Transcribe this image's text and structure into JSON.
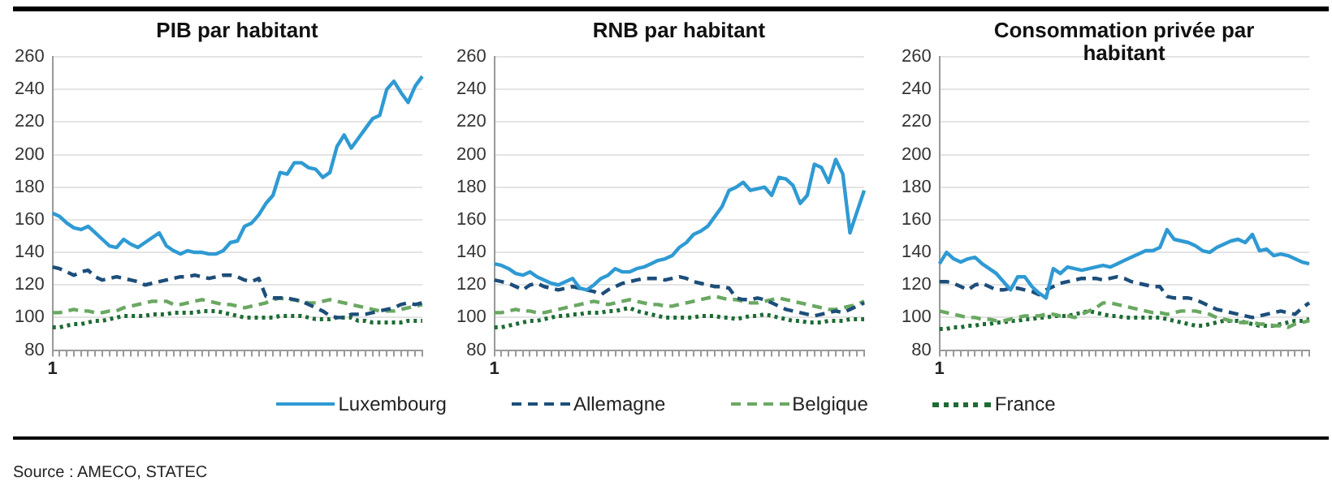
{
  "chart_data": [
    {
      "type": "line",
      "title": "PIB par habitant",
      "categories": [
        "1",
        null,
        null,
        null,
        null,
        null,
        null,
        null,
        null,
        null,
        null,
        null,
        null,
        null,
        null,
        null,
        null,
        null,
        null,
        null,
        null,
        null,
        null,
        null,
        null,
        null,
        null,
        null,
        null,
        null,
        null,
        null,
        null,
        null,
        null,
        null,
        null,
        null,
        null,
        null,
        null,
        null,
        null,
        null,
        null,
        null,
        null,
        null,
        null,
        null,
        null,
        null,
        null
      ],
      "ylim": [
        80,
        260
      ],
      "yticks": [
        80,
        100,
        120,
        140,
        160,
        180,
        200,
        220,
        240,
        260
      ],
      "grid": "y",
      "legend": "bottom",
      "marker": "none",
      "annotations": [
        "Source : AMECO, STATEC"
      ],
      "series": [
        {
          "name": "Luxembourg",
          "color": "#2f9ad3",
          "line_style": "solid",
          "values": [
            164,
            162,
            158,
            155,
            154,
            156,
            152,
            148,
            144,
            143,
            148,
            145,
            143,
            146,
            149,
            152,
            144,
            141,
            139,
            141,
            140,
            140,
            139,
            139,
            141,
            146,
            147,
            156,
            158,
            163,
            170,
            175,
            189,
            188,
            195,
            195,
            192,
            191,
            186,
            189,
            205,
            212,
            204,
            210,
            216,
            222,
            224,
            240,
            245,
            238,
            232,
            242,
            248
          ]
        },
        {
          "name": "Allemagne",
          "color": "#1d4e7a",
          "line_style": "dashed",
          "values": [
            131,
            130,
            128,
            126,
            128,
            129,
            125,
            123,
            124,
            125,
            124,
            123,
            122,
            120,
            121,
            122,
            123,
            124,
            125,
            125,
            126,
            125,
            124,
            125,
            126,
            126,
            125,
            123,
            122,
            124,
            113,
            112,
            112,
            112,
            111,
            110,
            108,
            106,
            104,
            101,
            100,
            100,
            102,
            102,
            102,
            103,
            104,
            105,
            106,
            108,
            109,
            108,
            109
          ]
        },
        {
          "name": "Belgique",
          "color": "#6aa862",
          "line_style": "dashed",
          "values": [
            103,
            103,
            104,
            105,
            104,
            104,
            103,
            103,
            104,
            104,
            106,
            107,
            108,
            109,
            110,
            110,
            110,
            108,
            108,
            109,
            110,
            111,
            110,
            109,
            108,
            108,
            107,
            106,
            107,
            108,
            109,
            111,
            112,
            111,
            111,
            110,
            109,
            109,
            110,
            111,
            110,
            109,
            108,
            107,
            106,
            105,
            104,
            104,
            104,
            105,
            106,
            107,
            108
          ]
        },
        {
          "name": "France",
          "color": "#1e6b34",
          "line_style": "dotted",
          "values": [
            94,
            94,
            95,
            96,
            96,
            97,
            98,
            98,
            99,
            100,
            101,
            101,
            101,
            101,
            102,
            102,
            102,
            103,
            103,
            103,
            103,
            104,
            104,
            104,
            103,
            102,
            101,
            100,
            100,
            100,
            100,
            100,
            101,
            101,
            101,
            101,
            100,
            99,
            99,
            99,
            100,
            100,
            100,
            98,
            98,
            97,
            97,
            97,
            97,
            97,
            98,
            98,
            98
          ]
        }
      ]
    },
    {
      "type": "line",
      "title": "RNB par habitant",
      "categories": [
        "1",
        null,
        null,
        null,
        null,
        null,
        null,
        null,
        null,
        null,
        null,
        null,
        null,
        null,
        null,
        null,
        null,
        null,
        null,
        null,
        null,
        null,
        null,
        null,
        null,
        null,
        null,
        null,
        null,
        null,
        null,
        null,
        null,
        null,
        null,
        null,
        null,
        null,
        null,
        null,
        null,
        null,
        null,
        null,
        null,
        null,
        null,
        null,
        null,
        null,
        null,
        null,
        null
      ],
      "ylim": [
        80,
        260
      ],
      "yticks": [
        80,
        100,
        120,
        140,
        160,
        180,
        200,
        220,
        240,
        260
      ],
      "grid": "y",
      "marker": "none",
      "series": [
        {
          "color": "#2f9ad3",
          "line_style": "solid",
          "values": [
            133,
            132,
            130,
            127,
            126,
            128,
            125,
            123,
            121,
            120,
            122,
            124,
            118,
            117,
            120,
            124,
            126,
            130,
            128,
            128,
            130,
            131,
            133,
            135,
            136,
            138,
            143,
            146,
            151,
            153,
            156,
            162,
            168,
            178,
            180,
            183,
            178,
            179,
            180,
            175,
            186,
            185,
            181,
            170,
            175,
            194,
            192,
            183,
            197,
            188,
            152,
            165,
            178
          ]
        },
        {
          "color": "#1d4e7a",
          "line_style": "dashed",
          "values": [
            123,
            122,
            121,
            119,
            117,
            120,
            121,
            119,
            118,
            117,
            118,
            119,
            118,
            117,
            116,
            114,
            117,
            119,
            121,
            122,
            123,
            124,
            124,
            124,
            123,
            124,
            125,
            124,
            122,
            121,
            120,
            119,
            119,
            118,
            112,
            111,
            111,
            112,
            111,
            109,
            107,
            105,
            104,
            103,
            102,
            101,
            102,
            103,
            104,
            103,
            105,
            107,
            109
          ]
        },
        {
          "color": "#6aa862",
          "line_style": "dashed",
          "values": [
            103,
            103,
            104,
            105,
            104,
            104,
            103,
            103,
            104,
            105,
            106,
            107,
            108,
            109,
            110,
            109,
            108,
            109,
            110,
            111,
            110,
            109,
            108,
            108,
            107,
            107,
            108,
            109,
            110,
            111,
            112,
            113,
            112,
            111,
            111,
            110,
            109,
            109,
            110,
            111,
            112,
            111,
            110,
            109,
            108,
            107,
            106,
            105,
            105,
            106,
            107,
            108,
            110
          ]
        },
        {
          "color": "#1e6b34",
          "line_style": "dotted",
          "values": [
            94,
            94,
            95,
            96,
            97,
            98,
            98,
            99,
            100,
            101,
            101,
            102,
            102,
            103,
            103,
            103,
            104,
            104,
            105,
            106,
            104,
            103,
            102,
            101,
            100,
            100,
            100,
            100,
            100,
            101,
            101,
            101,
            100,
            100,
            99,
            100,
            101,
            101,
            102,
            101,
            100,
            99,
            98,
            98,
            97,
            97,
            97,
            98,
            98,
            98,
            99,
            99,
            99
          ]
        }
      ]
    },
    {
      "type": "line",
      "title": "Consommation privée par habitant",
      "categories": [
        "1",
        null,
        null,
        null,
        null,
        null,
        null,
        null,
        null,
        null,
        null,
        null,
        null,
        null,
        null,
        null,
        null,
        null,
        null,
        null,
        null,
        null,
        null,
        null,
        null,
        null,
        null,
        null,
        null,
        null,
        null,
        null,
        null,
        null,
        null,
        null,
        null,
        null,
        null,
        null,
        null,
        null,
        null,
        null,
        null,
        null,
        null,
        null,
        null,
        null,
        null,
        null,
        null
      ],
      "ylim": [
        80,
        260
      ],
      "yticks": [
        80,
        100,
        120,
        140,
        160,
        180,
        200,
        220,
        240,
        260
      ],
      "grid": "y",
      "marker": "none",
      "series": [
        {
          "color": "#2f9ad3",
          "line_style": "solid",
          "values": [
            133,
            140,
            136,
            134,
            136,
            137,
            133,
            130,
            127,
            122,
            117,
            125,
            125,
            119,
            115,
            112,
            130,
            127,
            131,
            130,
            129,
            130,
            131,
            132,
            131,
            133,
            135,
            137,
            139,
            141,
            141,
            143,
            154,
            148,
            147,
            146,
            144,
            141,
            140,
            143,
            145,
            147,
            148,
            146,
            151,
            141,
            142,
            138,
            139,
            138,
            136,
            134,
            133
          ]
        },
        {
          "color": "#1d4e7a",
          "line_style": "dashed",
          "values": [
            122,
            122,
            121,
            119,
            117,
            120,
            121,
            119,
            117,
            117,
            118,
            118,
            117,
            116,
            114,
            117,
            119,
            121,
            122,
            123,
            124,
            124,
            124,
            123,
            124,
            125,
            124,
            122,
            121,
            120,
            119,
            119,
            113,
            112,
            112,
            112,
            111,
            109,
            107,
            105,
            104,
            103,
            102,
            101,
            100,
            101,
            102,
            103,
            104,
            103,
            102,
            106,
            109
          ]
        },
        {
          "color": "#6aa862",
          "line_style": "dashed",
          "values": [
            104,
            103,
            102,
            101,
            100,
            100,
            99,
            99,
            98,
            98,
            99,
            100,
            101,
            101,
            101,
            102,
            102,
            101,
            101,
            100,
            102,
            104,
            106,
            109,
            109,
            108,
            107,
            106,
            105,
            104,
            103,
            103,
            102,
            103,
            104,
            104,
            104,
            103,
            102,
            100,
            99,
            98,
            97,
            97,
            97,
            96,
            96,
            95,
            95,
            94,
            96,
            97,
            98
          ]
        },
        {
          "color": "#1e6b34",
          "line_style": "dotted",
          "values": [
            93,
            93,
            94,
            94,
            95,
            95,
            96,
            96,
            97,
            97,
            98,
            98,
            99,
            99,
            100,
            100,
            101,
            101,
            101,
            102,
            103,
            104,
            103,
            102,
            101,
            101,
            100,
            100,
            100,
            100,
            100,
            100,
            99,
            98,
            97,
            96,
            95,
            95,
            96,
            97,
            98,
            98,
            98,
            97,
            96,
            95,
            95,
            95,
            96,
            97,
            98,
            98,
            99
          ]
        }
      ]
    }
  ]
}
